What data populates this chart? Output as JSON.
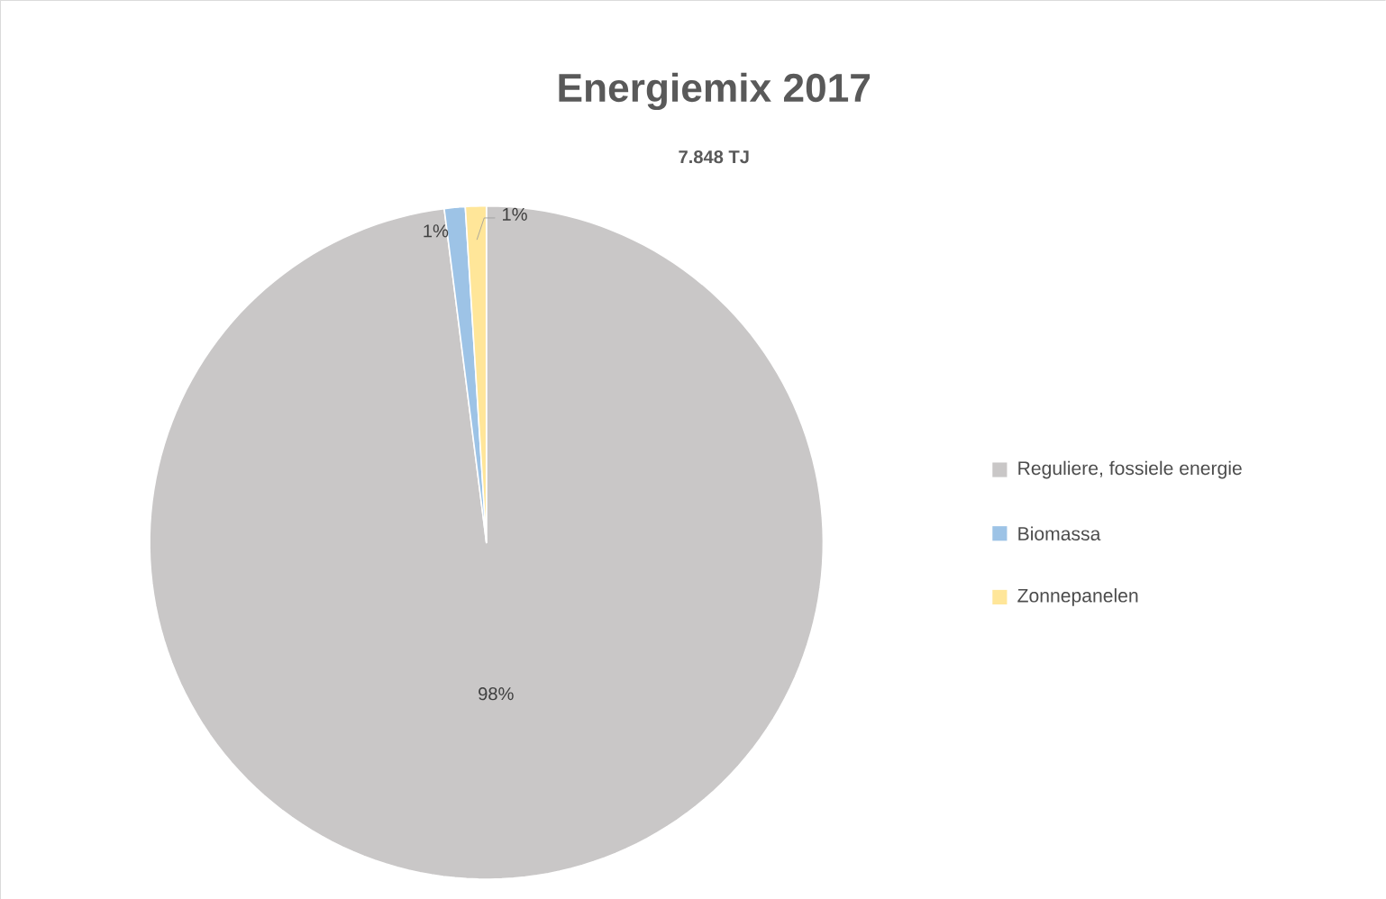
{
  "chart_data": {
    "type": "pie",
    "title": "Energiemix 2017",
    "subtitle": "7.848 TJ",
    "categories": [
      "Reguliere, fossiele energie",
      "Biomassa",
      "Zonnepanelen"
    ],
    "values": [
      98,
      1,
      1
    ],
    "colors": [
      "#c9c7c7",
      "#9dc3e6",
      "#ffe699"
    ],
    "value_labels": [
      "98%",
      "1%",
      "1%"
    ],
    "legend": "right"
  }
}
